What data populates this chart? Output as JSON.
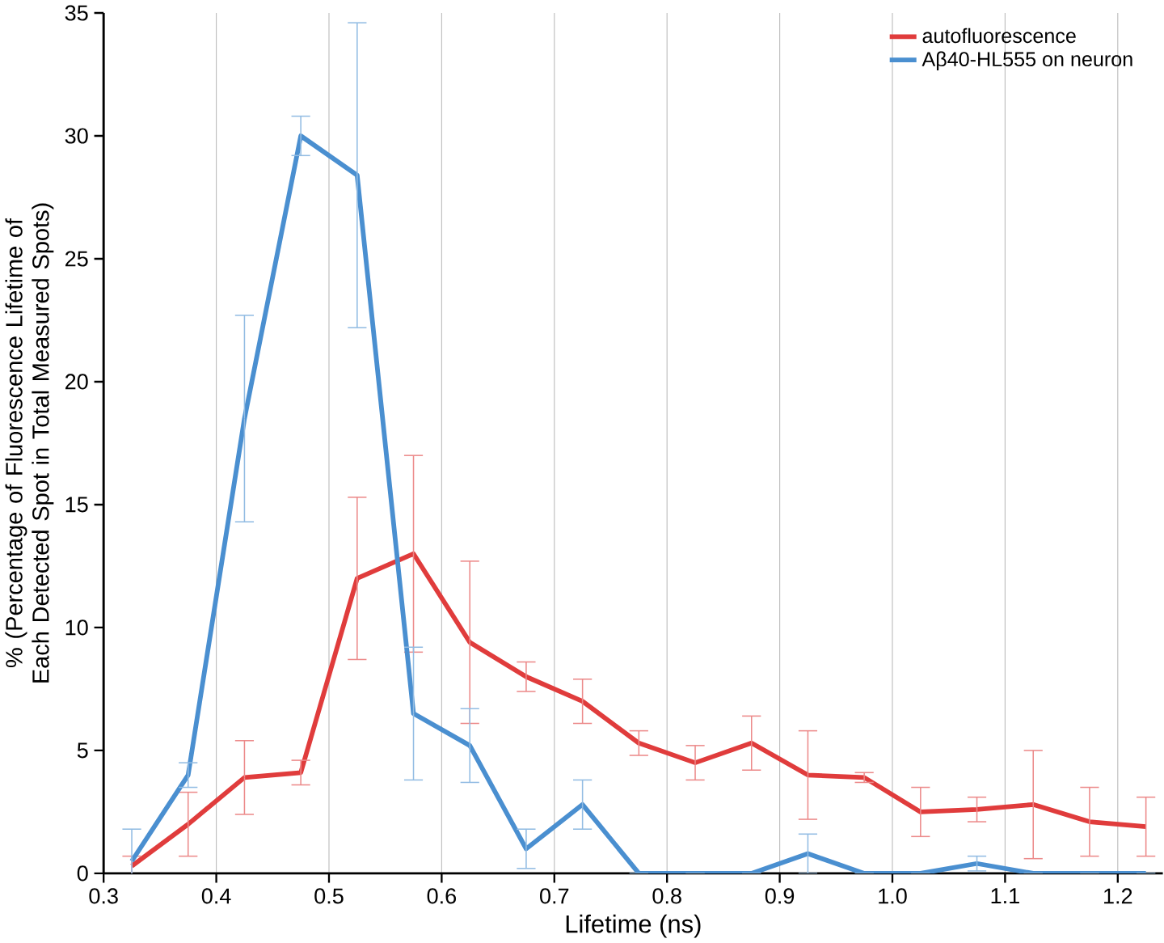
{
  "chart_data": {
    "type": "line",
    "xlabel": "Lifetime (ns)",
    "ylabel": "% (Percentage of Fluorescence Lifetime of Each Detected Spot in Total Measured Spots)",
    "x": [
      0.325,
      0.375,
      0.425,
      0.475,
      0.525,
      0.575,
      0.625,
      0.675,
      0.725,
      0.775,
      0.825,
      0.875,
      0.925,
      0.975,
      1.025,
      1.075,
      1.125,
      1.175,
      1.225
    ],
    "series": [
      {
        "name": "autofluorescence",
        "color": "#e03c3c",
        "values": [
          0.3,
          2,
          3.9,
          4.1,
          12,
          13,
          9.4,
          8,
          7,
          5.3,
          4.5,
          5.3,
          4,
          3.9,
          2.5,
          2.6,
          2.8,
          2.1,
          1.9
        ],
        "errors": [
          0.4,
          1.3,
          1.5,
          0.5,
          3.3,
          4,
          3.3,
          0.6,
          0.9,
          0.5,
          0.7,
          1.1,
          1.8,
          0.2,
          1,
          0.5,
          2.2,
          1.4,
          1.2
        ]
      },
      {
        "name": "Aβ40-HL555 on neuron",
        "color": "#4a8fd0",
        "values": [
          0.5,
          4,
          18.5,
          30,
          28.4,
          6.5,
          5.2,
          1,
          2.8,
          0,
          0,
          0,
          0.8,
          0,
          0,
          0.4,
          0,
          0,
          0
        ],
        "errors": [
          1.3,
          0.5,
          4.2,
          0.8,
          6.2,
          2.7,
          1.5,
          0.8,
          1,
          null,
          null,
          null,
          0.8,
          null,
          null,
          0.3,
          null,
          null,
          null
        ]
      }
    ],
    "xlim": [
      0.3,
      1.24
    ],
    "ylim": [
      0,
      35
    ],
    "xticks": [
      {
        "value": 0.3,
        "label": "0.3"
      },
      {
        "value": 0.4,
        "label": "0.4"
      },
      {
        "value": 0.5,
        "label": "0.5"
      },
      {
        "value": 0.6,
        "label": "0.6"
      },
      {
        "value": 0.7,
        "label": "0.7"
      },
      {
        "value": 0.8,
        "label": "0.8"
      },
      {
        "value": 0.9,
        "label": "0.9"
      },
      {
        "value": 1.0,
        "label": "1.0"
      },
      {
        "value": 1.1,
        "label": "1.1"
      },
      {
        "value": 1.2,
        "label": "1.2"
      }
    ],
    "yticks": [
      0,
      5,
      10,
      15,
      20,
      25,
      30,
      35
    ],
    "grid": "x",
    "legend": "top right",
    "marker": "none",
    "line_style": "solid"
  }
}
